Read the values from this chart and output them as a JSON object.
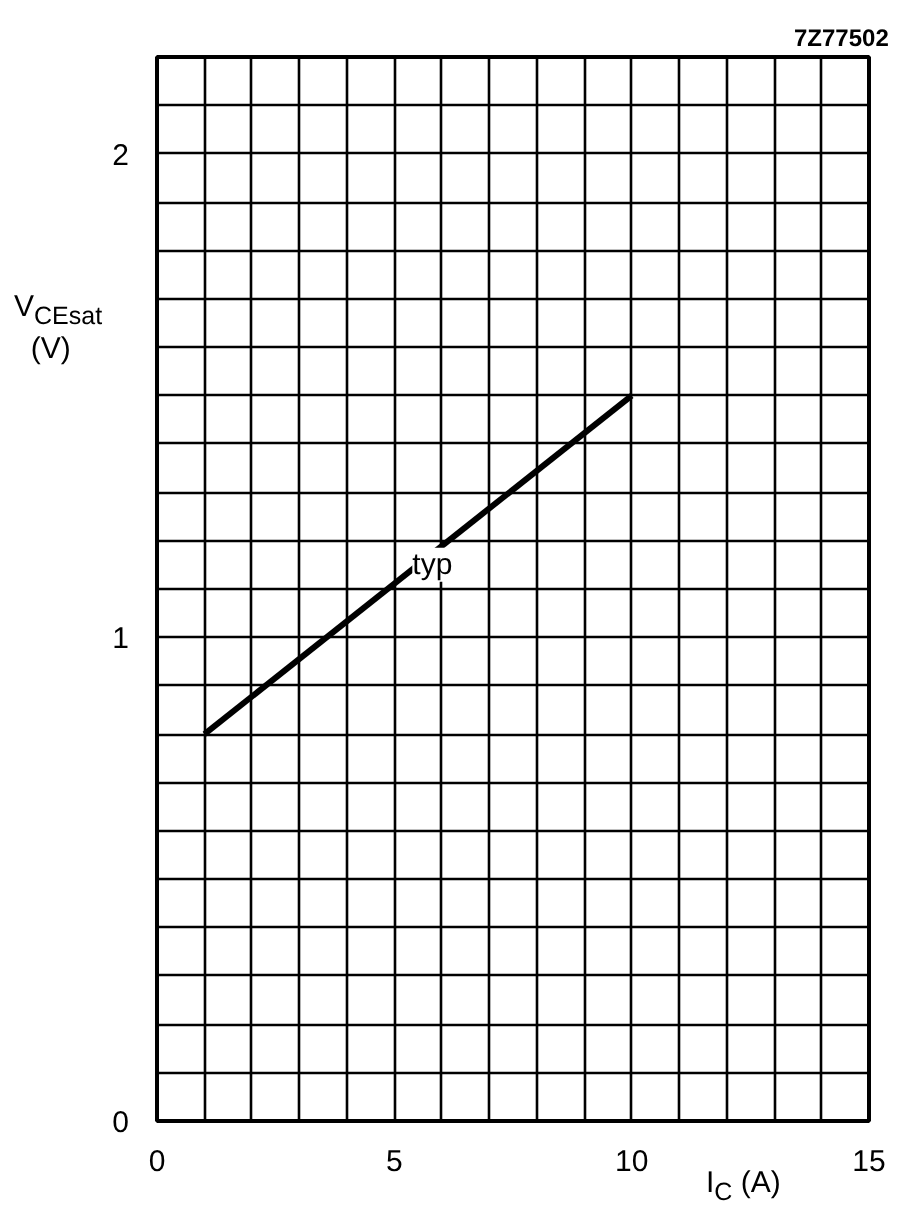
{
  "chart_data": {
    "type": "line",
    "xlabel": "I$_{C}$ (A)",
    "ylabel": "V$_{CEsat}$ (V)",
    "x": [
      1,
      10
    ],
    "series": [
      {
        "name": "typ",
        "color": "#000000",
        "values": [
          0.8,
          1.5
        ]
      }
    ],
    "xlim": [
      0,
      15
    ],
    "ylim": [
      0,
      2.2
    ],
    "xticks": [
      0,
      {
        "value": 1,
        "label": null
      },
      {
        "value": 2,
        "label": null
      },
      {
        "value": 3,
        "label": null
      },
      {
        "value": 4,
        "label": null
      },
      5,
      {
        "value": 6,
        "label": null
      },
      {
        "value": 7,
        "label": null
      },
      {
        "value": 8,
        "label": null
      },
      {
        "value": 9,
        "label": null
      },
      10,
      {
        "value": 11,
        "label": null
      },
      {
        "value": 12,
        "label": null
      },
      {
        "value": 13,
        "label": null
      },
      {
        "value": 14,
        "label": null
      },
      15
    ],
    "yticks": [
      0,
      {
        "value": 0.1,
        "label": null
      },
      {
        "value": 0.2,
        "label": null
      },
      {
        "value": 0.3,
        "label": null
      },
      {
        "value": 0.4,
        "label": null
      },
      {
        "value": 0.5,
        "label": null
      },
      {
        "value": 0.6,
        "label": null
      },
      {
        "value": 0.7,
        "label": null
      },
      {
        "value": 0.8,
        "label": null
      },
      {
        "value": 0.9,
        "label": null
      },
      1,
      {
        "value": 1.1,
        "label": null
      },
      {
        "value": 1.2,
        "label": null
      },
      {
        "value": 1.3,
        "label": null
      },
      {
        "value": 1.4,
        "label": null
      },
      {
        "value": 1.5,
        "label": null
      },
      {
        "value": 1.6,
        "label": null
      },
      {
        "value": 1.7,
        "label": null
      },
      {
        "value": 1.8,
        "label": null
      },
      {
        "value": 1.9,
        "label": null
      },
      2,
      {
        "value": 2.1,
        "label": null
      },
      {
        "value": 2.2,
        "label": null
      }
    ],
    "grid": true,
    "annotations": [
      "7Z77502"
    ]
  }
}
